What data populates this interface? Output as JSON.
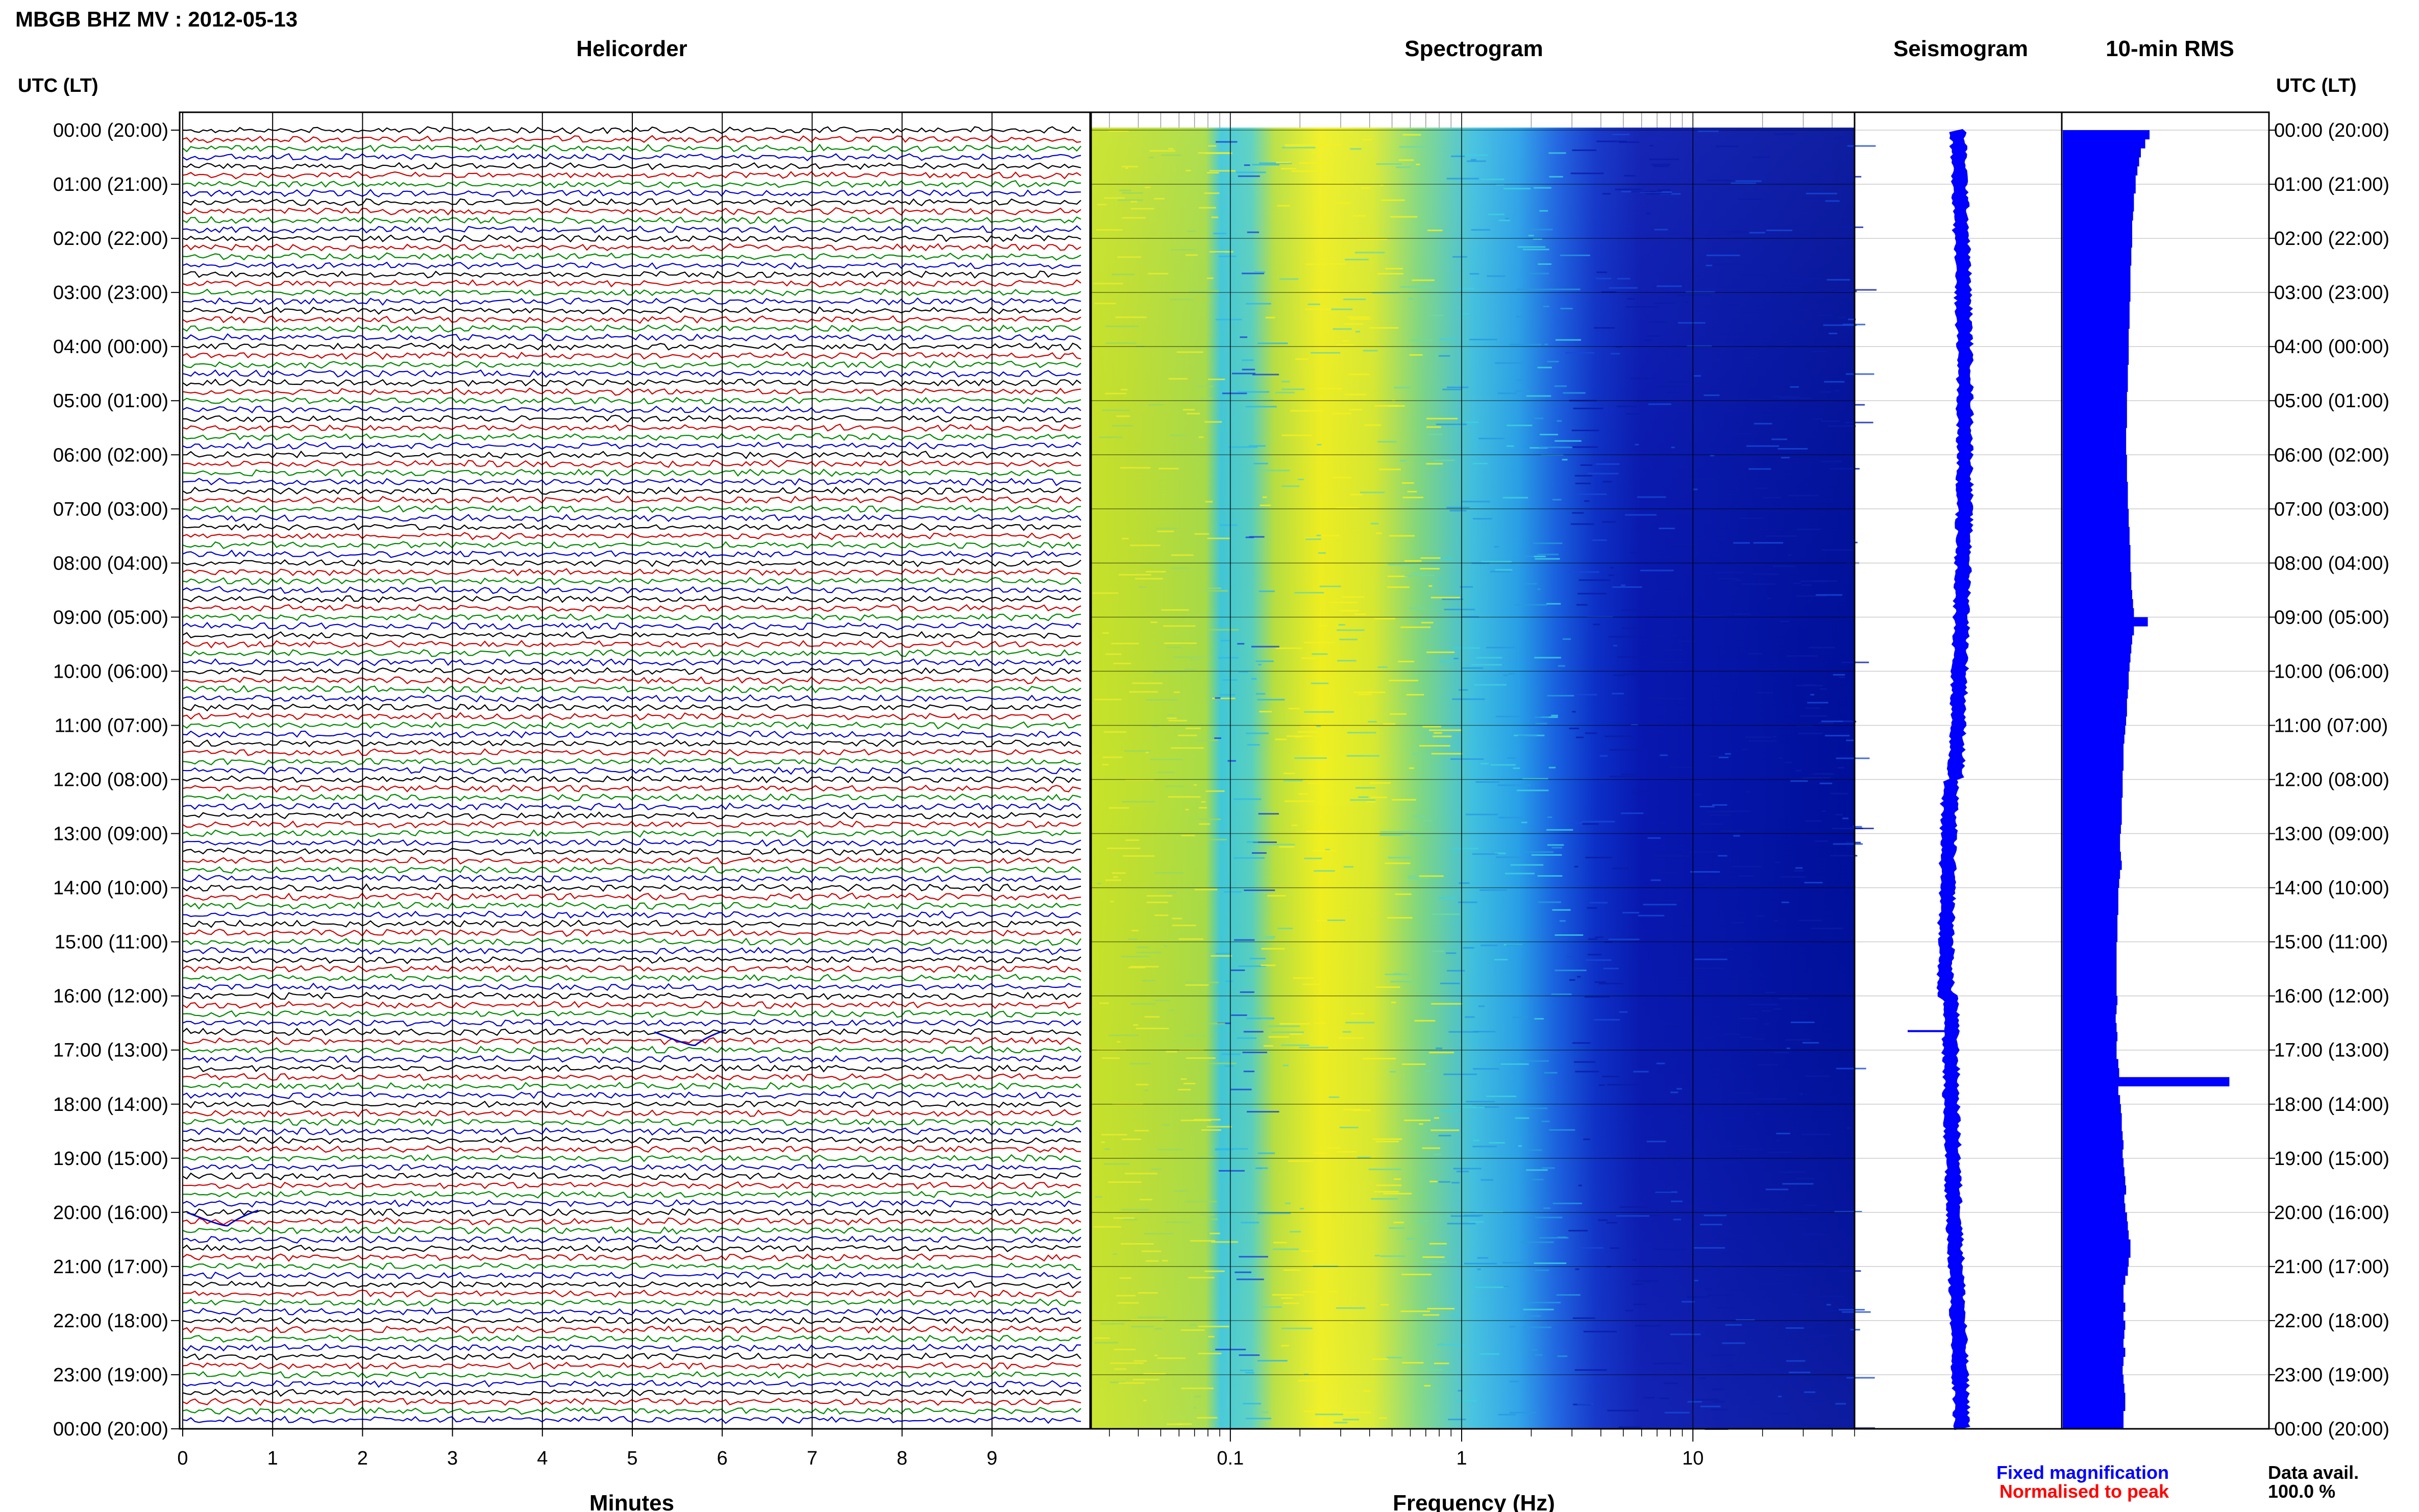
{
  "header": {
    "title": "MBGB BHZ MV : 2012-05-13",
    "left_axis_label": "UTC (LT)",
    "right_axis_label": "UTC (LT)"
  },
  "panels": {
    "helicorder": "Helicorder",
    "spectrogram": "Spectrogram",
    "seismogram": "Seismogram",
    "rms": "10-min RMS"
  },
  "footer": {
    "minutes_label": "Minutes",
    "frequency_label": "Frequency (Hz)",
    "fixed_magnification": "Fixed magnification",
    "normalised_to_peak": "Normalised to peak",
    "data_avail_label": "Data avail.",
    "data_avail_value": "100.0 %"
  },
  "colors": {
    "trace_cycle": [
      "#000000",
      "#cc0000",
      "#008800",
      "#0000cc"
    ],
    "fixed_magnification": "#0000ff",
    "normalised_to_peak": "#ff0000",
    "rms_bar": "#0000ff",
    "seismogram": "#0000ff"
  },
  "chart_data": [
    {
      "type": "line",
      "panel": "helicorder",
      "title": "Helicorder",
      "xlabel": "Minutes",
      "xlim": [
        0,
        10
      ],
      "x_ticks": [
        "0",
        "1",
        "2",
        "3",
        "4",
        "5",
        "6",
        "7",
        "8",
        "9"
      ],
      "rows_per_hour": 6,
      "y_ticks": [
        "00:00 (20:00)",
        "01:00 (21:00)",
        "02:00 (22:00)",
        "03:00 (23:00)",
        "04:00 (00:00)",
        "05:00 (01:00)",
        "06:00 (02:00)",
        "07:00 (03:00)",
        "08:00 (04:00)",
        "09:00 (05:00)",
        "10:00 (06:00)",
        "11:00 (07:00)",
        "12:00 (08:00)",
        "13:00 (09:00)",
        "14:00 (10:00)",
        "15:00 (11:00)",
        "16:00 (12:00)",
        "17:00 (13:00)",
        "18:00 (14:00)",
        "19:00 (15:00)",
        "20:00 (16:00)",
        "21:00 (17:00)",
        "22:00 (18:00)",
        "23:00 (19:00)",
        "00:00 (20:00)"
      ],
      "events": [
        {
          "time": "16:40",
          "minute": 5.7
        },
        {
          "time": "20:00",
          "minute": 0.5
        }
      ]
    },
    {
      "type": "heatmap",
      "panel": "spectrogram",
      "title": "Spectrogram",
      "xlabel": "Frequency (Hz)",
      "x_scale": "log",
      "xlim": [
        0.025,
        50
      ],
      "x_ticks": [
        "0.1",
        "1",
        "10"
      ],
      "peak_band_hz": [
        0.2,
        0.6
      ],
      "y_range_hours": [
        0,
        24
      ]
    },
    {
      "type": "line",
      "panel": "seismogram",
      "title": "Seismogram",
      "y_range_hours": [
        0,
        24
      ]
    },
    {
      "type": "bar",
      "panel": "rms",
      "title": "10-min RMS",
      "orientation": "horizontal",
      "bin_minutes": 10,
      "values": [
        1.0,
        0.95,
        0.9,
        0.88,
        0.86,
        0.84,
        0.84,
        0.82,
        0.82,
        0.81,
        0.8,
        0.8,
        0.8,
        0.79,
        0.79,
        0.78,
        0.78,
        0.78,
        0.78,
        0.77,
        0.77,
        0.77,
        0.76,
        0.76,
        0.76,
        0.76,
        0.75,
        0.75,
        0.75,
        0.74,
        0.74,
        0.74,
        0.74,
        0.73,
        0.73,
        0.73,
        0.74,
        0.74,
        0.74,
        0.75,
        0.75,
        0.75,
        0.76,
        0.76,
        0.77,
        0.77,
        0.78,
        0.78,
        0.78,
        0.79,
        0.79,
        0.8,
        0.81,
        0.82,
        0.98,
        0.82,
        0.8,
        0.79,
        0.78,
        0.77,
        0.76,
        0.76,
        0.75,
        0.74,
        0.74,
        0.73,
        0.72,
        0.71,
        0.7,
        0.7,
        0.7,
        0.69,
        0.69,
        0.69,
        0.68,
        0.68,
        0.68,
        0.67,
        0.66,
        0.66,
        0.67,
        0.68,
        0.66,
        0.65,
        0.64,
        0.64,
        0.64,
        0.63,
        0.63,
        0.63,
        0.62,
        0.62,
        0.62,
        0.62,
        0.62,
        0.62,
        0.63,
        0.62,
        0.61,
        0.62,
        0.63,
        0.62,
        0.62,
        0.64,
        0.65,
        1.92,
        0.64,
        0.66,
        0.67,
        0.68,
        0.68,
        0.69,
        0.7,
        0.69,
        0.7,
        0.71,
        0.72,
        0.73,
        0.71,
        0.72,
        0.74,
        0.75,
        0.76,
        0.78,
        0.78,
        0.76,
        0.75,
        0.72,
        0.7,
        0.7,
        0.72,
        0.7,
        0.72,
        0.71,
        0.7,
        0.72,
        0.7,
        0.69,
        0.7,
        0.71,
        0.72,
        0.72,
        0.7,
        0.7
      ]
    }
  ]
}
